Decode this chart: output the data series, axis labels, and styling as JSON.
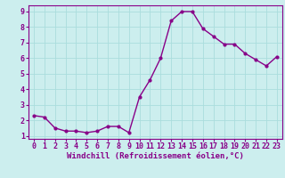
{
  "x": [
    0,
    1,
    2,
    3,
    4,
    5,
    6,
    7,
    8,
    9,
    10,
    11,
    12,
    13,
    14,
    15,
    16,
    17,
    18,
    19,
    20,
    21,
    22,
    23
  ],
  "y": [
    2.3,
    2.2,
    1.5,
    1.3,
    1.3,
    1.2,
    1.3,
    1.6,
    1.6,
    1.2,
    3.5,
    4.6,
    6.0,
    8.4,
    9.0,
    9.0,
    7.9,
    7.4,
    6.9,
    6.9,
    6.3,
    5.9,
    5.5,
    6.1
  ],
  "line_color": "#880088",
  "marker_color": "#880088",
  "bg_color": "#cceeee",
  "grid_color": "#aadddd",
  "xlabel": "Windchill (Refroidissement éolien,°C)",
  "ylim": [
    0.8,
    9.4
  ],
  "xlim": [
    -0.5,
    23.5
  ],
  "yticks": [
    1,
    2,
    3,
    4,
    5,
    6,
    7,
    8,
    9
  ],
  "xticks": [
    0,
    1,
    2,
    3,
    4,
    5,
    6,
    7,
    8,
    9,
    10,
    11,
    12,
    13,
    14,
    15,
    16,
    17,
    18,
    19,
    20,
    21,
    22,
    23
  ],
  "line_width": 1.0,
  "marker_size": 2.0,
  "xlabel_fontsize": 6.5,
  "tick_fontsize": 6.0,
  "axis_color": "#880088"
}
